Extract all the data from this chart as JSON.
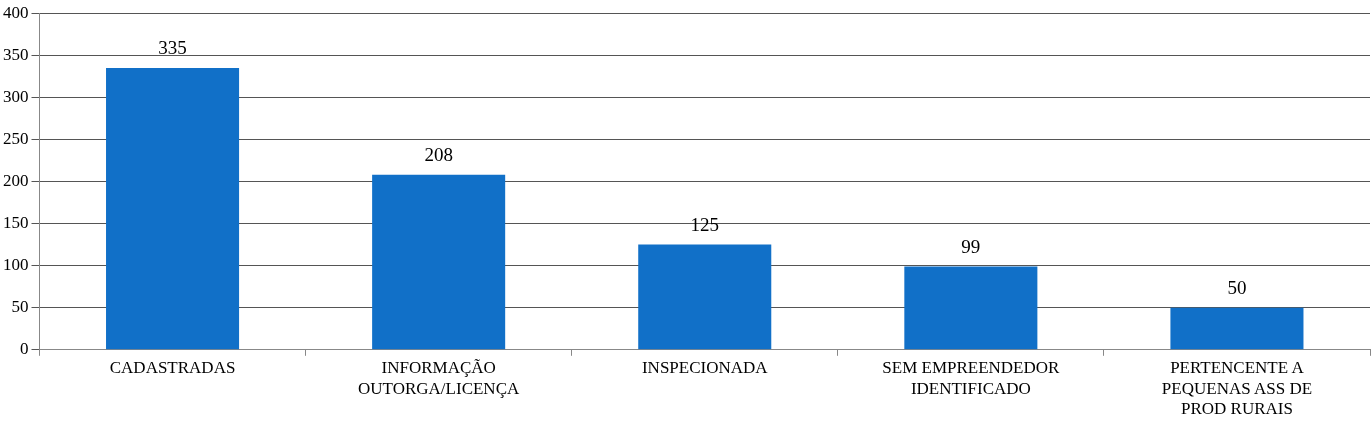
{
  "chart_data": {
    "type": "bar",
    "categories": [
      "CADASTRADAS",
      "INFORMAÇÃO OUTORGA/LICENÇA",
      "INSPECIONADA",
      "SEM EMPREENDEDOR IDENTIFICADO",
      "PERTENCENTE A PEQUENAS ASS DE PROD RURAIS"
    ],
    "values": [
      335,
      208,
      125,
      99,
      50
    ],
    "color": "#1170c8",
    "ylim": [
      0,
      400
    ],
    "yticks": [
      0,
      50,
      100,
      150,
      200,
      250,
      300,
      350,
      400
    ],
    "grid": "y",
    "legend": false,
    "data_labels": true
  }
}
